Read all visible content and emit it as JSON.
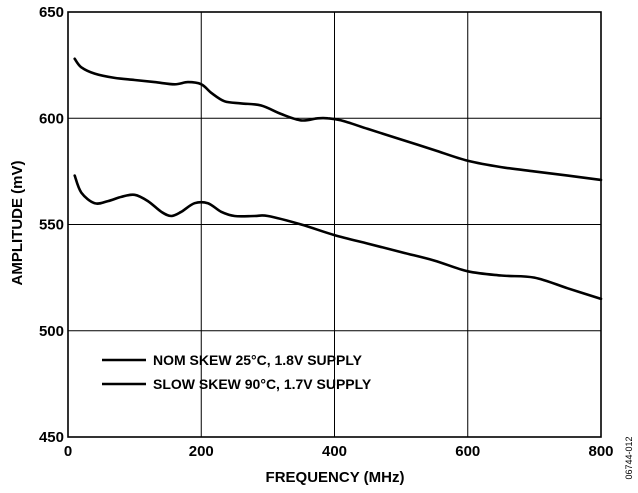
{
  "chart_data": {
    "type": "line",
    "title": "",
    "xlabel": "FREQUENCY (MHz)",
    "ylabel": "AMPLITUDE (mV)",
    "xlim": [
      0,
      800
    ],
    "ylim": [
      450,
      650
    ],
    "xticks": [
      0,
      200,
      400,
      600,
      800
    ],
    "yticks": [
      450,
      500,
      550,
      600,
      650
    ],
    "grid": true,
    "legend_position": "bottom-left",
    "series": [
      {
        "name": "NOM SKEW 25°C, 1.8V SUPPLY",
        "x": [
          10,
          20,
          40,
          70,
          100,
          130,
          160,
          180,
          200,
          215,
          235,
          260,
          290,
          320,
          350,
          375,
          390,
          410,
          450,
          500,
          550,
          600,
          650,
          700,
          750,
          800
        ],
        "y": [
          628,
          624,
          621,
          619,
          618,
          617,
          616,
          617,
          616,
          612,
          608,
          607,
          606,
          602,
          599,
          600,
          600,
          599,
          595,
          590,
          585,
          580,
          577,
          575,
          573,
          571
        ]
      },
      {
        "name": "SLOW SKEW 90°C, 1.7V SUPPLY",
        "x": [
          10,
          20,
          40,
          60,
          80,
          100,
          120,
          140,
          155,
          170,
          190,
          210,
          230,
          250,
          280,
          300,
          350,
          400,
          450,
          500,
          550,
          600,
          650,
          700,
          750,
          800
        ],
        "y": [
          573,
          565,
          560,
          561,
          563,
          564,
          561,
          556,
          554,
          556,
          560,
          560,
          556,
          554,
          554,
          554,
          550,
          545,
          541,
          537,
          533,
          528,
          526,
          525,
          520,
          515
        ]
      }
    ],
    "figure_id": "06744-012"
  }
}
